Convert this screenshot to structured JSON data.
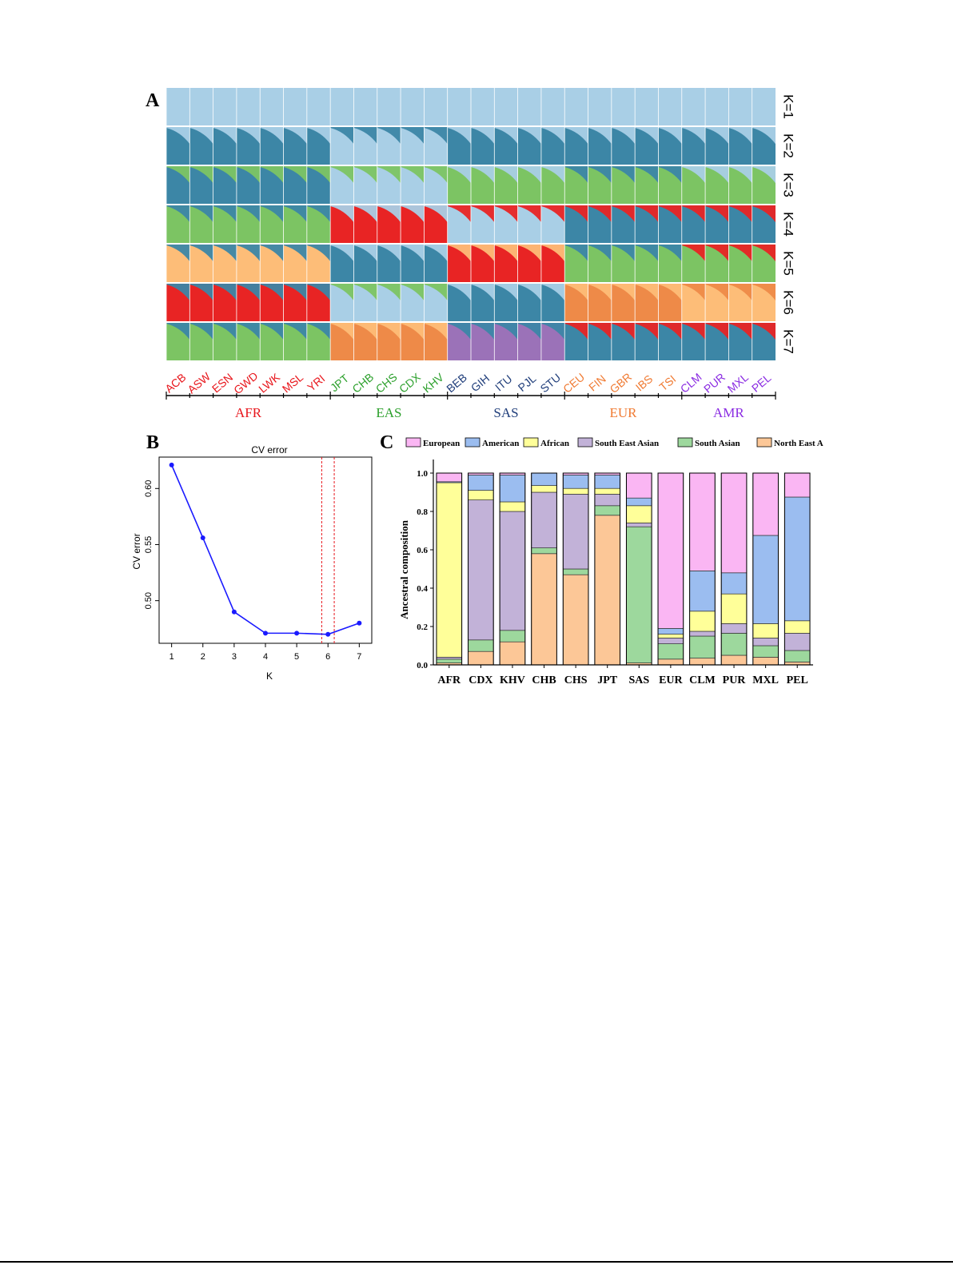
{
  "panelA": {
    "panel_label": "A",
    "k_labels": [
      "K=1",
      "K=2",
      "K=3",
      "K=4",
      "K=5",
      "K=6",
      "K=7"
    ],
    "populations": [
      {
        "code": "ACB",
        "region": "AFR"
      },
      {
        "code": "ASW",
        "region": "AFR"
      },
      {
        "code": "ESN",
        "region": "AFR"
      },
      {
        "code": "GWD",
        "region": "AFR"
      },
      {
        "code": "LWK",
        "region": "AFR"
      },
      {
        "code": "MSL",
        "region": "AFR"
      },
      {
        "code": "YRI",
        "region": "AFR"
      },
      {
        "code": "JPT",
        "region": "EAS"
      },
      {
        "code": "CHB",
        "region": "EAS"
      },
      {
        "code": "CHS",
        "region": "EAS"
      },
      {
        "code": "CDX",
        "region": "EAS"
      },
      {
        "code": "KHV",
        "region": "EAS"
      },
      {
        "code": "BEB",
        "region": "SAS"
      },
      {
        "code": "GIH",
        "region": "SAS"
      },
      {
        "code": "ITU",
        "region": "SAS"
      },
      {
        "code": "PJL",
        "region": "SAS"
      },
      {
        "code": "STU",
        "region": "SAS"
      },
      {
        "code": "CEU",
        "region": "EUR"
      },
      {
        "code": "FIN",
        "region": "EUR"
      },
      {
        "code": "GBR",
        "region": "EUR"
      },
      {
        "code": "IBS",
        "region": "EUR"
      },
      {
        "code": "TSI",
        "region": "EUR"
      },
      {
        "code": "CLM",
        "region": "AMR"
      },
      {
        "code": "PUR",
        "region": "AMR"
      },
      {
        "code": "MXL",
        "region": "AMR"
      },
      {
        "code": "PEL",
        "region": "AMR"
      }
    ],
    "regions": [
      "AFR",
      "EAS",
      "SAS",
      "EUR",
      "AMR"
    ],
    "region_colors": {
      "AFR": "#e8151b",
      "EAS": "#2ca02c",
      "SAS": "#1f3d7a",
      "EUR": "#f07a32",
      "AMR": "#8a2be2"
    },
    "cluster_colors": {
      "light_blue": "#a9cfe6",
      "dark_teal": "#3c86a6",
      "green": "#7cc463",
      "red": "#e82424",
      "orange": "#fdbd78",
      "dark_orange": "#ee8a48",
      "purple": "#9b72b8"
    }
  },
  "panelB": {
    "panel_label": "B",
    "chart_data": {
      "type": "line",
      "title": "CV error",
      "xlabel": "K",
      "ylabel": "CV error",
      "x": [
        1,
        2,
        3,
        4,
        5,
        6,
        7
      ],
      "y": [
        0.621,
        0.556,
        0.49,
        0.471,
        0.471,
        0.47,
        0.48
      ],
      "xlim": [
        0.6,
        7.4
      ],
      "ylim": [
        0.462,
        0.628
      ],
      "xticks": [
        "1",
        "2",
        "3",
        "4",
        "5",
        "6",
        "7"
      ],
      "yticks": [
        "0.50",
        "0.55",
        "0.60"
      ],
      "ytick_values": [
        0.5,
        0.55,
        0.6
      ],
      "vlines": [
        5.8,
        6.2
      ],
      "line_color": "#1a1aff",
      "vline_color": "#e8151b"
    }
  },
  "panelC": {
    "panel_label": "C",
    "chart_data": {
      "type": "bar",
      "stacked": true,
      "ylabel": "Ancestral composition",
      "ylim": [
        0,
        1.05
      ],
      "yticks": [
        "0.0",
        "0.2",
        "0.4",
        "0.6",
        "0.8",
        "1.0"
      ],
      "ytick_values": [
        0,
        0.2,
        0.4,
        0.6,
        0.8,
        1.0
      ],
      "categories": [
        "AFR",
        "CDX",
        "KHV",
        "CHB",
        "CHS",
        "JPT",
        "SAS",
        "EUR",
        "CLM",
        "PUR",
        "MXL",
        "PEL"
      ],
      "series": [
        {
          "name": "North East Asian",
          "color": "#fcc797",
          "values": [
            0.01,
            0.07,
            0.12,
            0.58,
            0.47,
            0.78,
            0.01,
            0.03,
            0.035,
            0.05,
            0.04,
            0.015
          ]
        },
        {
          "name": "South Asian",
          "color": "#9dd89d",
          "values": [
            0.02,
            0.06,
            0.06,
            0.03,
            0.03,
            0.05,
            0.71,
            0.08,
            0.115,
            0.115,
            0.06,
            0.06
          ]
        },
        {
          "name": "South East Asian",
          "color": "#c2b2d8",
          "values": [
            0.01,
            0.73,
            0.62,
            0.29,
            0.39,
            0.06,
            0.02,
            0.03,
            0.025,
            0.05,
            0.04,
            0.09
          ]
        },
        {
          "name": "African",
          "color": "#ffff99",
          "values": [
            0.91,
            0.05,
            0.05,
            0.035,
            0.03,
            0.03,
            0.09,
            0.02,
            0.105,
            0.155,
            0.075,
            0.065
          ]
        },
        {
          "name": "American",
          "color": "#9bbdf0",
          "values": [
            0.005,
            0.08,
            0.14,
            0.065,
            0.07,
            0.07,
            0.04,
            0.03,
            0.21,
            0.11,
            0.46,
            0.645
          ]
        },
        {
          "name": "European",
          "color": "#fab6f3",
          "values": [
            0.045,
            0.01,
            0.01,
            0.0,
            0.01,
            0.01,
            0.13,
            0.81,
            0.51,
            0.52,
            0.325,
            0.125
          ]
        }
      ],
      "legend_order": [
        "European",
        "American",
        "African",
        "South East Asian",
        "South Asian",
        "North East Asian"
      ],
      "legend_position": "top"
    }
  }
}
